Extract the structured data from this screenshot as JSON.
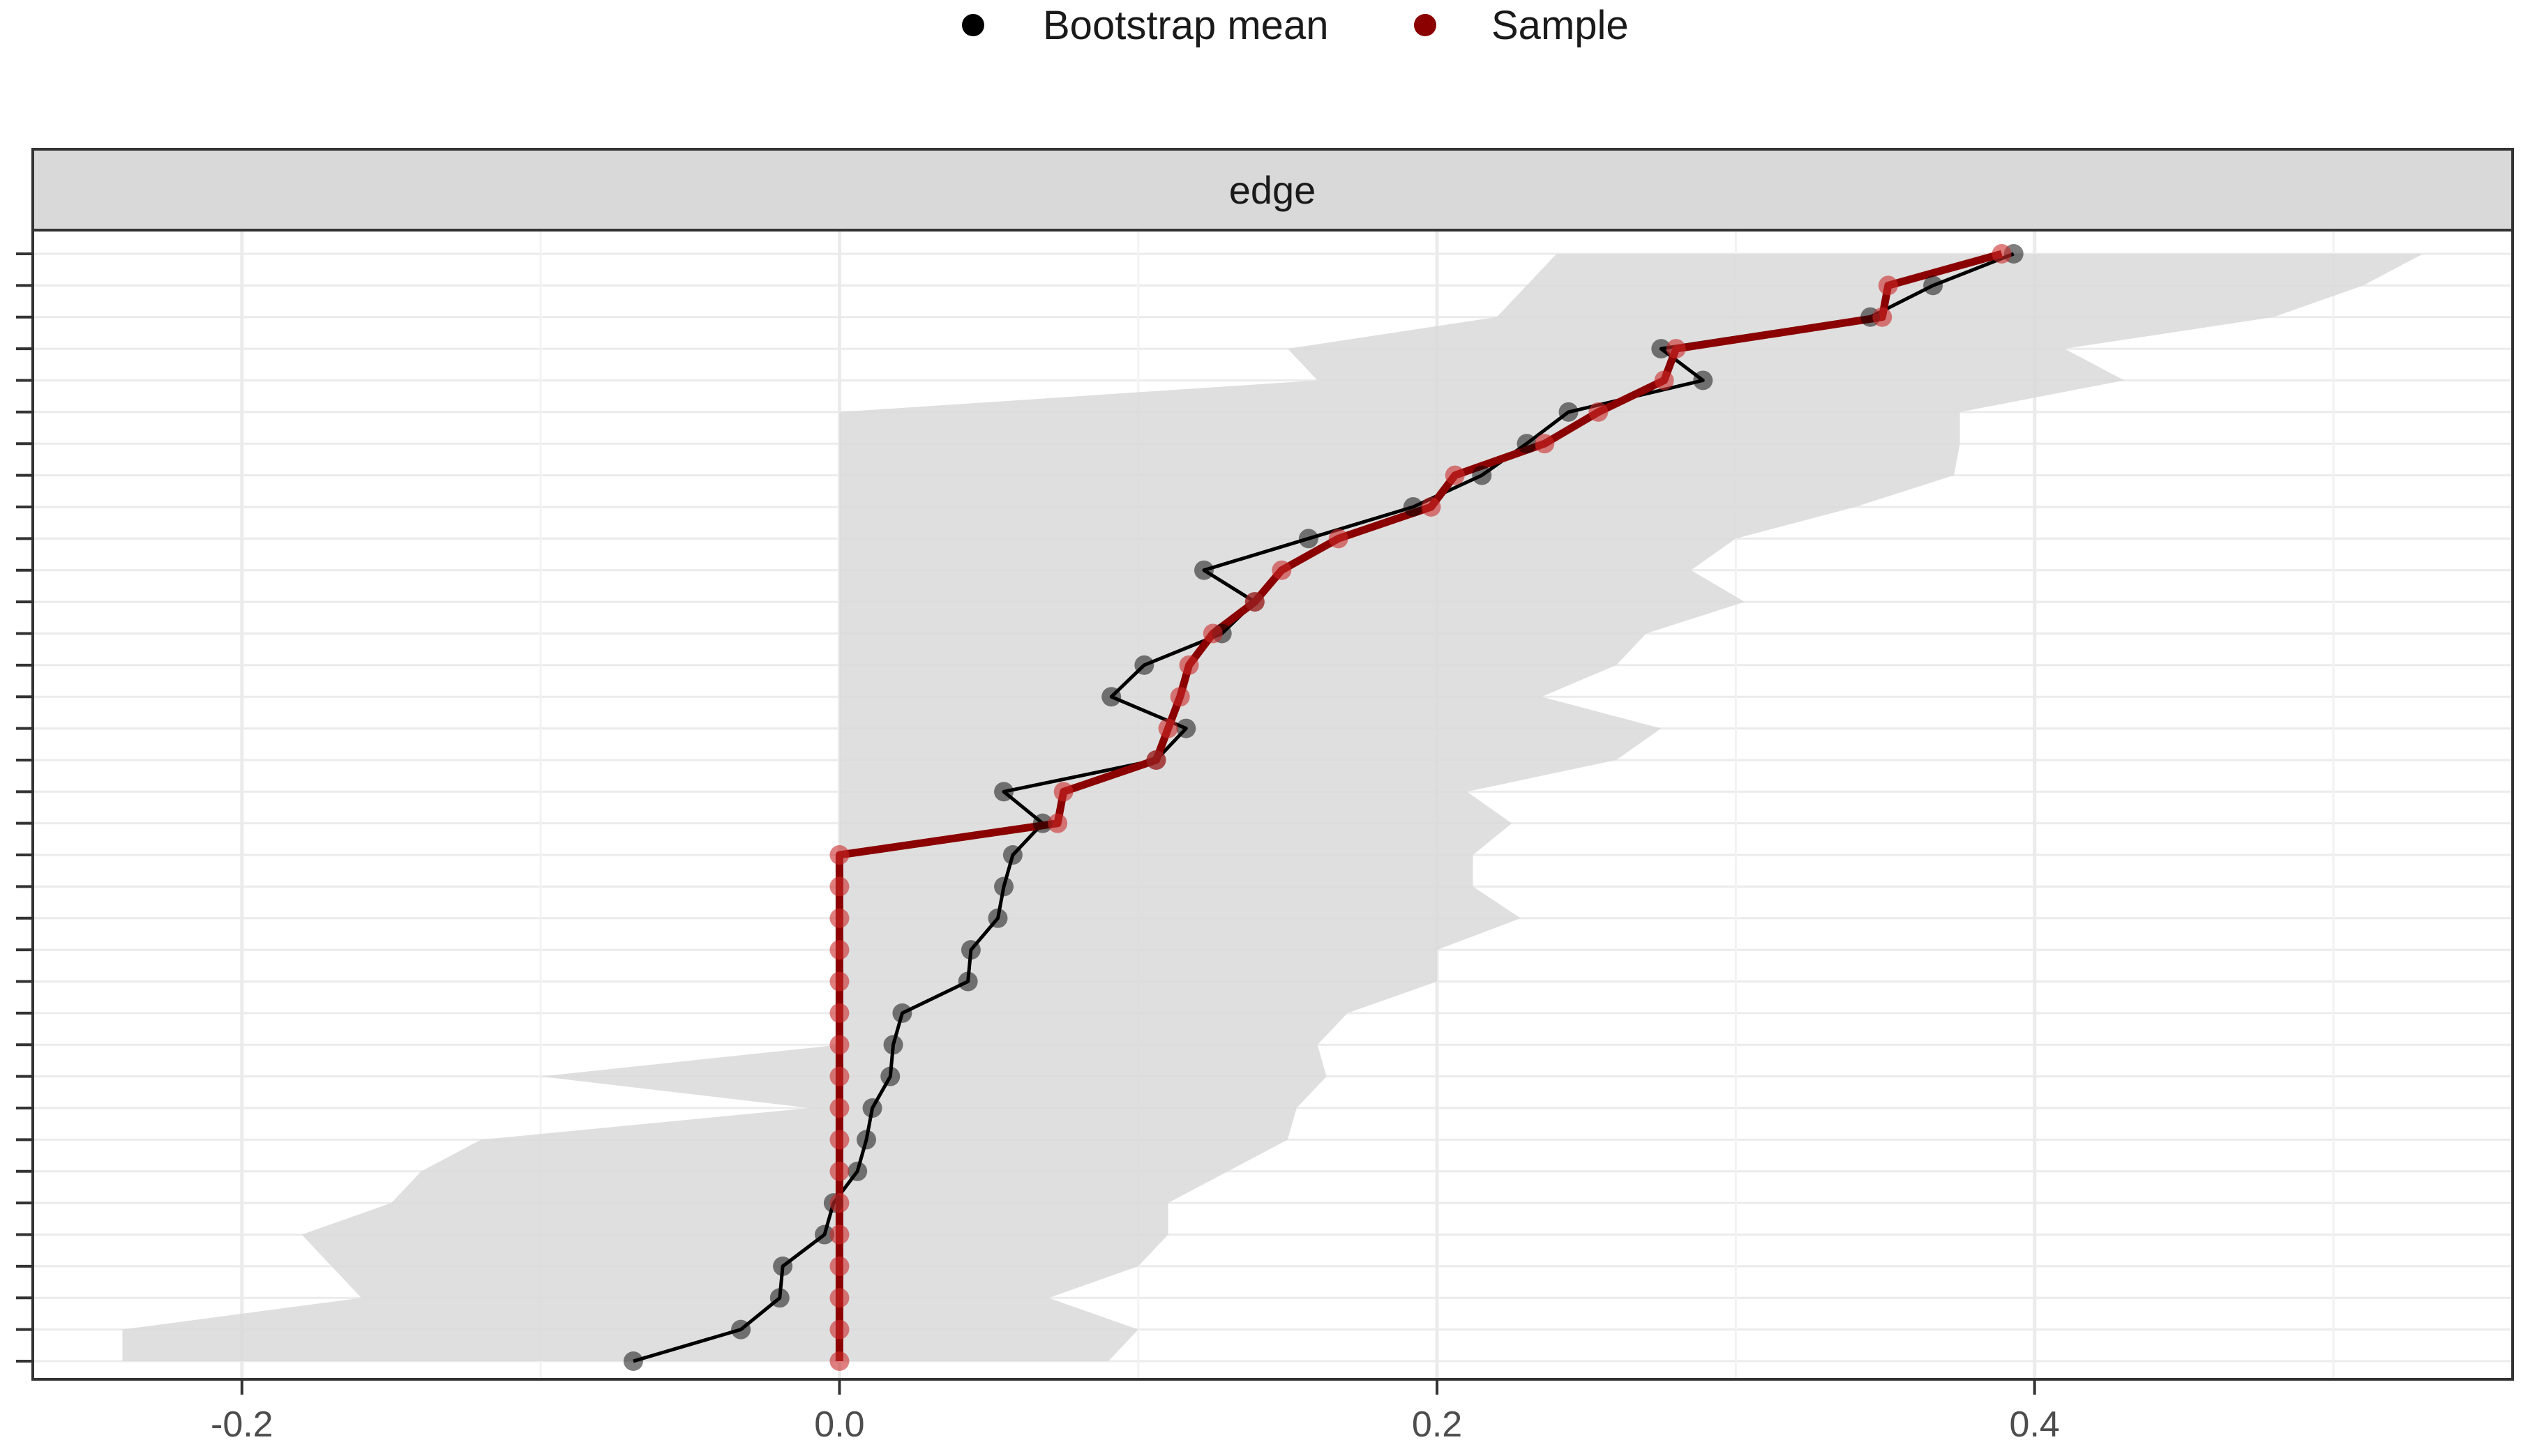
{
  "chart_data": {
    "type": "line",
    "facet_label": "edge",
    "legend": {
      "position": "top",
      "entries": [
        {
          "name": "Bootstrap mean",
          "color": "#000000"
        },
        {
          "name": "Sample",
          "color": "#8b0000"
        }
      ]
    },
    "x_axis": {
      "range": [
        -0.27,
        0.56
      ],
      "ticks": [
        -0.2,
        0.0,
        0.2,
        0.4
      ],
      "tick_labels": [
        "-0.2",
        "0.0",
        "0.2",
        "0.4"
      ]
    },
    "y_axis": {
      "rows": 36,
      "labels_visible": false
    },
    "grid": true,
    "colors": {
      "bootstrap": "#000000",
      "sample": "#8b0000",
      "ci_band": "#d9d9d9",
      "strip_bg": "#d9d9d9",
      "panel_border": "#333333"
    },
    "series": [
      {
        "name": "Bootstrap mean",
        "values": [
          0.393,
          0.366,
          0.345,
          0.275,
          0.289,
          0.244,
          0.23,
          0.215,
          0.192,
          0.157,
          0.122,
          0.139,
          0.128,
          0.102,
          0.091,
          0.116,
          0.106,
          0.055,
          0.068,
          0.058,
          0.055,
          0.053,
          0.044,
          0.043,
          0.021,
          0.018,
          0.017,
          0.011,
          0.009,
          0.006,
          -0.002,
          -0.005,
          -0.019,
          -0.02,
          -0.033,
          -0.069
        ]
      },
      {
        "name": "Sample",
        "values": [
          0.389,
          0.351,
          0.349,
          0.28,
          0.276,
          0.254,
          0.236,
          0.206,
          0.198,
          0.167,
          0.148,
          0.139,
          0.125,
          0.117,
          0.114,
          0.11,
          0.106,
          0.075,
          0.073,
          0.0,
          0.0,
          0.0,
          0.0,
          0.0,
          0.0,
          0.0,
          0.0,
          0.0,
          0.0,
          0.0,
          0.0,
          0.0,
          0.0,
          0.0,
          0.0,
          0.0
        ]
      }
    ],
    "ci_lower": [
      0.24,
      0.23,
      0.22,
      0.15,
      0.16,
      0.0,
      0.0,
      0.0,
      0.0,
      0.0,
      0.0,
      0.0,
      0.0,
      0.0,
      0.0,
      0.0,
      0.0,
      0.0,
      0.0,
      0.0,
      0.0,
      0.0,
      0.0,
      0.0,
      0.0,
      0.0,
      -0.1,
      -0.01,
      -0.12,
      -0.14,
      -0.15,
      -0.18,
      -0.17,
      -0.16,
      -0.24,
      -0.24
    ],
    "ci_upper": [
      0.53,
      0.51,
      0.48,
      0.41,
      0.43,
      0.375,
      0.375,
      0.373,
      0.34,
      0.3,
      0.285,
      0.303,
      0.27,
      0.26,
      0.235,
      0.275,
      0.26,
      0.21,
      0.225,
      0.212,
      0.212,
      0.228,
      0.2,
      0.2,
      0.17,
      0.16,
      0.163,
      0.153,
      0.15,
      0.13,
      0.11,
      0.11,
      0.1,
      0.07,
      0.1,
      0.09
    ]
  }
}
